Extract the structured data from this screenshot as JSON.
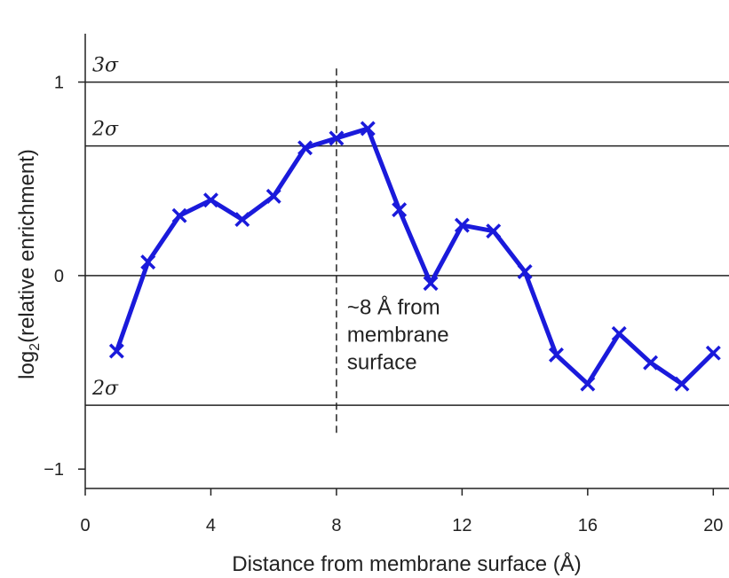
{
  "chart_data": {
    "type": "line",
    "title": "",
    "xlabel": "Distance from membrane surface (Å)",
    "ylabel_main": "log",
    "ylabel_sub": "2",
    "ylabel_rest": "(relative enrichment)",
    "xlim": [
      0,
      20.5
    ],
    "ylim": [
      -1.1,
      1.25
    ],
    "x_ticks": [
      0,
      4,
      8,
      12,
      16,
      20
    ],
    "x_tick_labels": [
      "0",
      "4",
      "8",
      "12",
      "16",
      "20"
    ],
    "y_ticks": [
      -1,
      0,
      1
    ],
    "y_tick_labels": [
      "−1",
      "0",
      "1"
    ],
    "grid": false,
    "series": [
      {
        "name": "relative enrichment",
        "color": "#1a1adb",
        "marker": "x",
        "x": [
          1,
          2,
          3,
          4,
          5,
          6,
          7,
          8,
          9,
          10,
          11,
          12,
          13,
          14,
          15,
          16,
          17,
          18,
          19,
          20
        ],
        "values": [
          -0.39,
          0.07,
          0.31,
          0.39,
          0.29,
          0.41,
          0.66,
          0.71,
          0.76,
          0.34,
          -0.04,
          0.26,
          0.23,
          0.02,
          -0.41,
          -0.56,
          -0.3,
          -0.45,
          -0.56,
          -0.4
        ]
      }
    ],
    "reference_lines": [
      {
        "y": 1.0,
        "label": "3σ"
      },
      {
        "y": 0.67,
        "label": "2σ"
      },
      {
        "y": 0.0,
        "label": ""
      },
      {
        "y": -0.67,
        "label": "2σ"
      }
    ],
    "vertical_marker": {
      "x": 8,
      "y_range": [
        -0.82,
        1.07
      ],
      "style": "dashed",
      "annotation_lines": [
        "~8 Å from",
        "membrane",
        "surface"
      ]
    }
  }
}
